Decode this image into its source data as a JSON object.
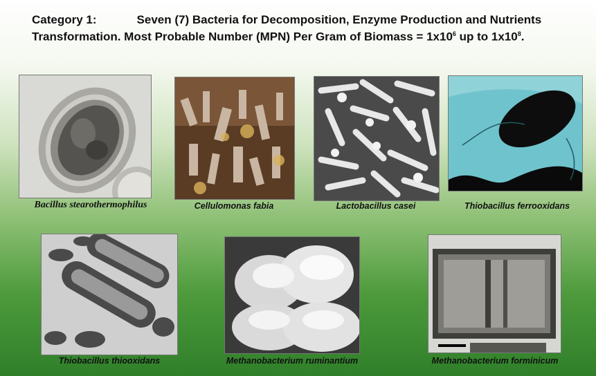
{
  "slide": {
    "title": {
      "category": "Category 1:",
      "text_line1": "Seven (7) Bacteria for Decomposition, Enzyme Production and Nutrients Transformation. Most Probable Number (MPN) Per Gram of Biomass = 1x10",
      "exp1": "6",
      "mid": " up to 1x10",
      "exp2": "8",
      "end": "."
    },
    "images": [
      {
        "caption": "Bacillus stearothermophilus"
      },
      {
        "caption": "Cellulomonas fabia"
      },
      {
        "caption": "Lactobacillus casei"
      },
      {
        "caption": "Thiobacillus ferrooxidans"
      },
      {
        "caption": "Thiobacillus thiooxidans"
      },
      {
        "caption": "Methanobacterium ruminantium"
      },
      {
        "caption": "Methanobacterium forminicum"
      }
    ],
    "colors": {
      "background_top": "#ffffff",
      "background_bottom": "#2f7f2a",
      "text": "#111111"
    }
  }
}
